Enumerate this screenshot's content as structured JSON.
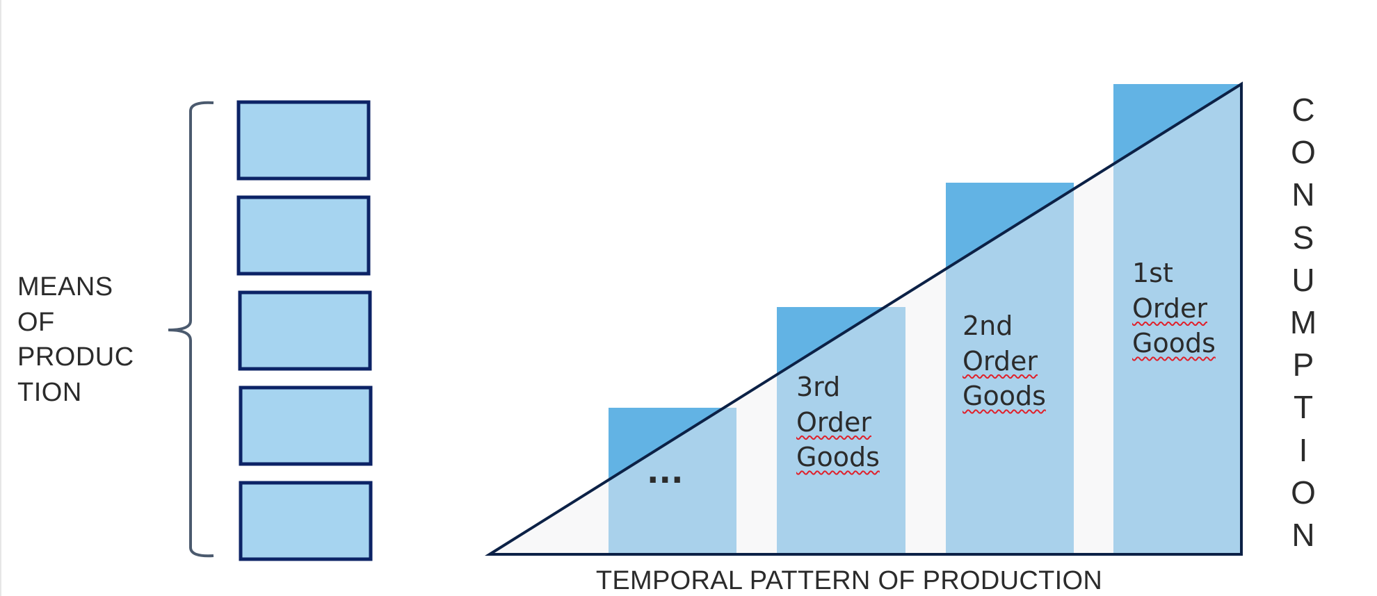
{
  "colors": {
    "bar_above_line": "#62b3e4",
    "bar_below_line": "#a9d1eb",
    "triangle_fill": "#f8f8f9",
    "outline": "#0c2146",
    "box_fill": "#a6d4f0",
    "box_border": "#0c2366",
    "bracket": "#4b5a6e"
  },
  "left_label": {
    "lines": [
      "MEANS",
      "OF",
      "PRODUC",
      "TION"
    ]
  },
  "means_boxes": 5,
  "stages": [
    {
      "lines": [
        "..."
      ]
    },
    {
      "lines": [
        "3rd",
        "Order",
        "Goods"
      ]
    },
    {
      "lines": [
        "2nd",
        "Order",
        "Goods"
      ]
    },
    {
      "lines": [
        "1st",
        "Order",
        "Goods"
      ]
    }
  ],
  "x_label": "TEMPORAL PATTERN OF PRODUCTION",
  "right_label": "CONSUMPTION"
}
